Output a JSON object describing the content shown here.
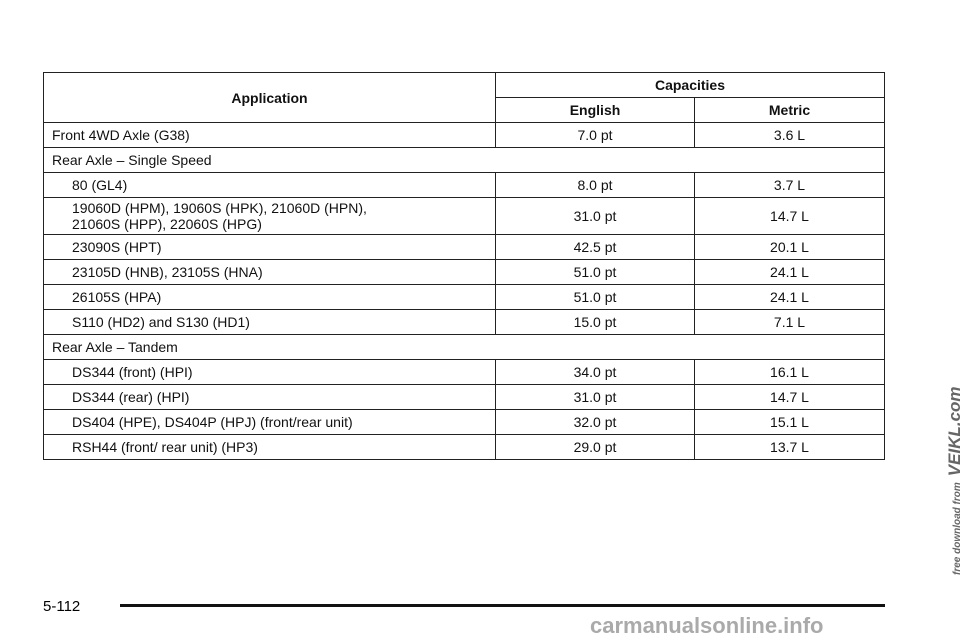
{
  "table": {
    "header": {
      "application": "Application",
      "capacities": "Capacities",
      "english": "English",
      "metric": "Metric"
    },
    "rows": [
      [
        "Front 4WD Axle (G38)",
        "7.0 pt",
        "3.6 L"
      ]
    ],
    "groups": [
      {
        "title": "Rear Axle – Single Speed",
        "rows": [
          [
            "80 (GL4)",
            "8.0 pt",
            "3.7 L"
          ],
          [
            "19060D (HPM), 19060S (HPK), 21060D (HPN),\n21060S (HPP), 22060S (HPG)",
            "31.0 pt",
            "14.7 L"
          ],
          [
            "23090S (HPT)",
            "42.5 pt",
            "20.1 L"
          ],
          [
            "23105D (HNB), 23105S (HNA)",
            "51.0 pt",
            "24.1 L"
          ],
          [
            "26105S (HPA)",
            "51.0 pt",
            "24.1 L"
          ],
          [
            "S110 (HD2) and S130 (HD1)",
            "15.0 pt",
            "7.1 L"
          ]
        ]
      },
      {
        "title": "Rear Axle – Tandem",
        "rows": [
          [
            "DS344 (front) (HPI)",
            "34.0 pt",
            "16.1 L"
          ],
          [
            "DS344 (rear) (HPI)",
            "31.0 pt",
            "14.7 L"
          ],
          [
            "DS404 (HPE), DS404P (HPJ) (front/rear unit)",
            "32.0 pt",
            "15.1 L"
          ],
          [
            "RSH44 (front/ rear unit) (HP3)",
            "29.0 pt",
            "13.7 L"
          ]
        ]
      }
    ]
  },
  "footer": {
    "page_number": "5-112"
  },
  "watermark": {
    "line1": "free download from",
    "line2": "VEIKL.com",
    "site": "carmanualsonline.info"
  }
}
